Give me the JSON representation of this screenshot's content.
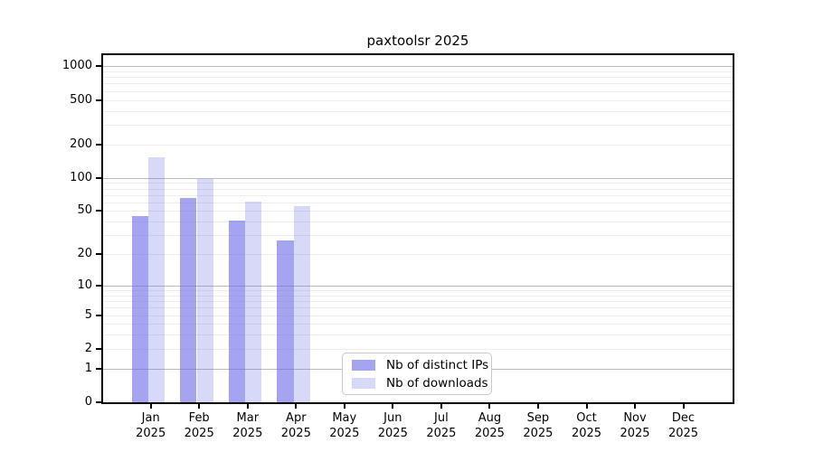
{
  "page": {
    "background": "#ffffff"
  },
  "chart_data": {
    "type": "bar",
    "title": "paxtoolsr 2025",
    "categories": [
      "Jan",
      "Feb",
      "Mar",
      "Apr",
      "May",
      "Jun",
      "Jul",
      "Aug",
      "Sep",
      "Oct",
      "Nov",
      "Dec"
    ],
    "year": "2025",
    "series": [
      {
        "name": "Nb of distinct IPs",
        "values": [
          45,
          66,
          41,
          27,
          null,
          null,
          null,
          null,
          null,
          null,
          null,
          null
        ],
        "opacity": 0.59
      },
      {
        "name": "Nb of downloads",
        "values": [
          152,
          98,
          61,
          55,
          null,
          null,
          null,
          null,
          null,
          null,
          null,
          null
        ],
        "opacity": 0.25
      }
    ],
    "yscale": "log10(value+1)",
    "yticks": [
      0,
      1,
      2,
      5,
      10,
      20,
      50,
      100,
      200,
      500,
      1000
    ],
    "ylim": [
      0,
      1150
    ],
    "grid_major_at": [
      1,
      10,
      100,
      1000
    ],
    "grid_minor_multipliers": [
      2,
      3,
      4,
      5,
      6,
      7,
      8,
      9
    ],
    "legend_position": "lower-center-inside",
    "colors": {
      "bar_base": "#6464e6",
      "grid_major": "#bbbbbb",
      "grid_minor": "#ededed",
      "axis": "#000000",
      "text": "#000000",
      "legend_border": "#c9c9c9"
    }
  }
}
